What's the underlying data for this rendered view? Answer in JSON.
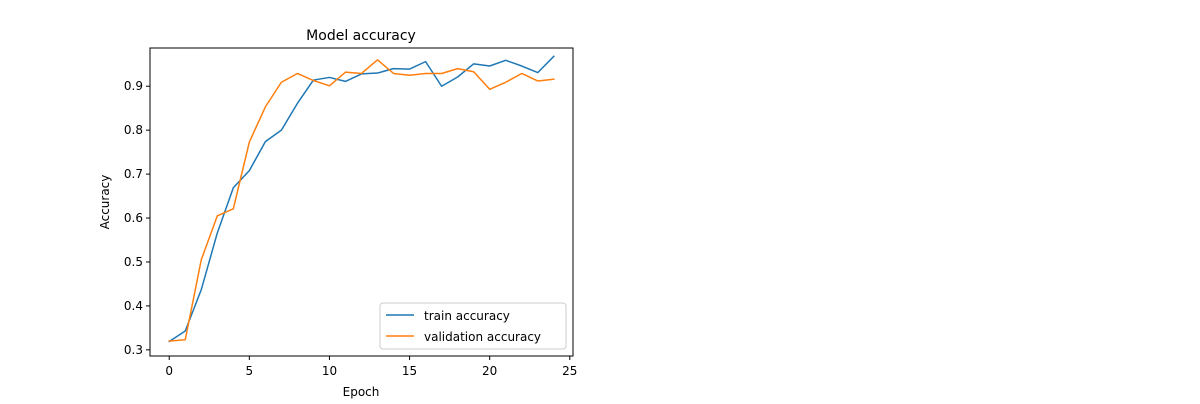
{
  "chart_data": {
    "type": "line",
    "title": "Model accuracy",
    "xlabel": "Epoch",
    "ylabel": "Accuracy",
    "xlim": [
      -1.2,
      25.2
    ],
    "ylim": [
      0.286,
      0.987
    ],
    "xticks": [
      0,
      5,
      10,
      15,
      20,
      25
    ],
    "yticks": [
      0.3,
      0.4,
      0.5,
      0.6,
      0.7,
      0.8,
      0.9
    ],
    "ytick_labels": [
      "0.3",
      "0.4",
      "0.5",
      "0.6",
      "0.7",
      "0.8",
      "0.9"
    ],
    "legend_position": "lower-right",
    "grid": false,
    "x": [
      0,
      1,
      2,
      3,
      4,
      5,
      6,
      7,
      8,
      9,
      10,
      11,
      12,
      13,
      14,
      15,
      16,
      17,
      18,
      19,
      20,
      21,
      22,
      23,
      24
    ],
    "series": [
      {
        "name": "train accuracy",
        "color": "#1f77b4",
        "values": [
          0.319,
          0.343,
          0.437,
          0.566,
          0.669,
          0.708,
          0.774,
          0.8,
          0.861,
          0.914,
          0.92,
          0.911,
          0.928,
          0.93,
          0.94,
          0.939,
          0.956,
          0.9,
          0.921,
          0.951,
          0.946,
          0.959,
          0.946,
          0.931,
          0.968
        ]
      },
      {
        "name": "validation accuracy",
        "color": "#ff7f0e",
        "values": [
          0.32,
          0.323,
          0.505,
          0.605,
          0.621,
          0.773,
          0.853,
          0.909,
          0.929,
          0.913,
          0.901,
          0.932,
          0.929,
          0.96,
          0.929,
          0.925,
          0.929,
          0.929,
          0.94,
          0.933,
          0.893,
          0.909,
          0.929,
          0.912,
          0.916
        ]
      }
    ]
  }
}
